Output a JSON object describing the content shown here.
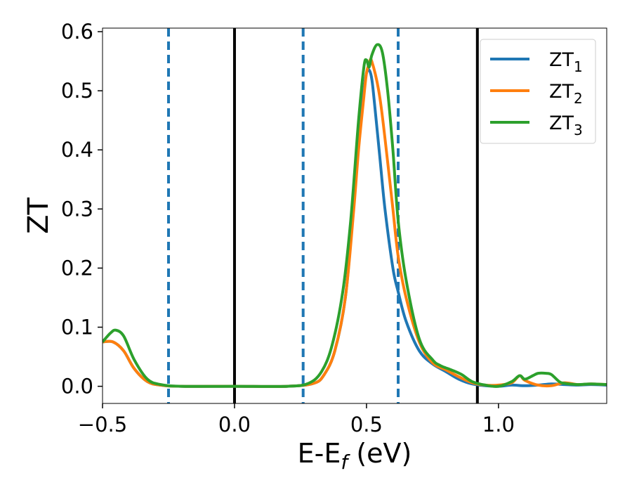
{
  "chart_data": {
    "type": "line",
    "title": "",
    "xlabel": "E-E",
    "xlabel_subscript": "f",
    "xlabel_unit": " (eV)",
    "ylabel": "ZT",
    "xlim": [
      -0.5,
      1.41
    ],
    "ylim": [
      -0.029,
      0.606
    ],
    "xticks": [
      -0.5,
      0.0,
      0.5,
      1.0
    ],
    "xtick_labels": [
      "−0.5",
      "0.0",
      "0.5",
      "1.0"
    ],
    "yticks": [
      0.0,
      0.1,
      0.2,
      0.3,
      0.4,
      0.5,
      0.6
    ],
    "ytick_labels": [
      "0.0",
      "0.1",
      "0.2",
      "0.3",
      "0.4",
      "0.5",
      "0.6"
    ],
    "grid": false,
    "legend_position": "top-right",
    "vertical_lines": [
      {
        "x": -0.25,
        "style": "dashed",
        "color": "#1f77b4"
      },
      {
        "x": 0.0,
        "style": "solid",
        "color": "#000000"
      },
      {
        "x": 0.26,
        "style": "dashed",
        "color": "#1f77b4"
      },
      {
        "x": 0.62,
        "style": "dashed",
        "color": "#1f77b4"
      },
      {
        "x": 0.92,
        "style": "solid",
        "color": "#000000"
      }
    ],
    "series": [
      {
        "name": "ZT",
        "name_subscript": "1",
        "color": "#1f77b4",
        "x": [
          -0.5,
          -0.46,
          -0.42,
          -0.38,
          -0.33,
          -0.28,
          -0.2,
          0.0,
          0.2,
          0.3,
          0.34,
          0.38,
          0.42,
          0.45,
          0.47,
          0.49,
          0.5,
          0.51,
          0.52,
          0.53,
          0.55,
          0.57,
          0.6,
          0.62,
          0.65,
          0.7,
          0.75,
          0.8,
          0.85,
          0.9,
          0.95,
          1.0,
          1.05,
          1.1,
          1.15,
          1.2,
          1.25,
          1.3,
          1.35,
          1.41
        ],
        "y": [
          0.075,
          0.075,
          0.06,
          0.03,
          0.008,
          0.002,
          0.0,
          0.0,
          0.0,
          0.005,
          0.02,
          0.06,
          0.15,
          0.3,
          0.42,
          0.5,
          0.53,
          0.535,
          0.52,
          0.48,
          0.39,
          0.3,
          0.2,
          0.16,
          0.11,
          0.06,
          0.038,
          0.025,
          0.012,
          0.004,
          0.001,
          0.0,
          0.002,
          0.001,
          0.002,
          0.004,
          0.003,
          0.002,
          0.003,
          0.002
        ]
      },
      {
        "name": "ZT",
        "name_subscript": "2",
        "color": "#ff7f0e",
        "x": [
          -0.5,
          -0.46,
          -0.42,
          -0.38,
          -0.33,
          -0.28,
          -0.2,
          0.0,
          0.2,
          0.3,
          0.34,
          0.38,
          0.42,
          0.45,
          0.47,
          0.49,
          0.5,
          0.51,
          0.52,
          0.55,
          0.58,
          0.6,
          0.62,
          0.65,
          0.7,
          0.75,
          0.8,
          0.85,
          0.9,
          0.95,
          1.0,
          1.05,
          1.08,
          1.1,
          1.15,
          1.2,
          1.25,
          1.3,
          1.35,
          1.41
        ],
        "y": [
          0.075,
          0.075,
          0.06,
          0.03,
          0.008,
          0.002,
          0.0,
          0.0,
          0.0,
          0.005,
          0.02,
          0.06,
          0.15,
          0.29,
          0.4,
          0.49,
          0.53,
          0.545,
          0.55,
          0.49,
          0.38,
          0.3,
          0.22,
          0.15,
          0.075,
          0.04,
          0.028,
          0.016,
          0.006,
          0.002,
          0.002,
          0.006,
          0.018,
          0.01,
          0.002,
          0.001,
          0.006,
          0.003,
          0.004,
          0.003
        ]
      },
      {
        "name": "ZT",
        "name_subscript": "3",
        "color": "#2ca02c",
        "x": [
          -0.5,
          -0.47,
          -0.45,
          -0.42,
          -0.38,
          -0.33,
          -0.28,
          -0.2,
          0.0,
          0.2,
          0.28,
          0.33,
          0.37,
          0.41,
          0.44,
          0.47,
          0.49,
          0.5,
          0.51,
          0.52,
          0.54,
          0.56,
          0.58,
          0.6,
          0.62,
          0.65,
          0.7,
          0.75,
          0.78,
          0.82,
          0.86,
          0.9,
          0.95,
          1.0,
          1.05,
          1.08,
          1.1,
          1.13,
          1.15,
          1.18,
          1.2,
          1.23,
          1.25,
          1.3,
          1.35,
          1.41
        ],
        "y": [
          0.075,
          0.09,
          0.095,
          0.085,
          0.045,
          0.012,
          0.003,
          0.0,
          0.0,
          0.0,
          0.005,
          0.025,
          0.07,
          0.16,
          0.28,
          0.45,
          0.54,
          0.552,
          0.54,
          0.56,
          0.578,
          0.565,
          0.5,
          0.4,
          0.28,
          0.18,
          0.08,
          0.045,
          0.035,
          0.028,
          0.02,
          0.008,
          0.002,
          0.0,
          0.008,
          0.018,
          0.012,
          0.018,
          0.022,
          0.022,
          0.02,
          0.008,
          0.005,
          0.003,
          0.004,
          0.003
        ]
      }
    ]
  }
}
